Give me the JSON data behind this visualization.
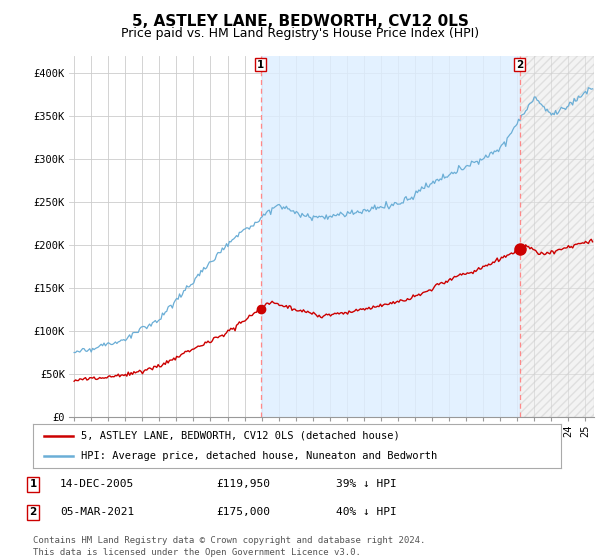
{
  "title": "5, ASTLEY LANE, BEDWORTH, CV12 0LS",
  "subtitle": "Price paid vs. HM Land Registry's House Price Index (HPI)",
  "title_fontsize": 11,
  "subtitle_fontsize": 9,
  "ylim": [
    0,
    420000
  ],
  "yticks": [
    0,
    50000,
    100000,
    150000,
    200000,
    250000,
    300000,
    350000,
    400000
  ],
  "ytick_labels": [
    "£0",
    "£50K",
    "£100K",
    "£150K",
    "£200K",
    "£250K",
    "£300K",
    "£350K",
    "£400K"
  ],
  "background_color": "#ffffff",
  "plot_bg_color": "#ffffff",
  "grid_color": "#cccccc",
  "hpi_color": "#6baed6",
  "price_color": "#cc0000",
  "shade_color": "#ddeeff",
  "marker1_t": 2005.95,
  "marker1_price_val": 119950,
  "marker1_label": "1",
  "marker1_date": "14-DEC-2005",
  "marker1_price": "£119,950",
  "marker1_pct": "39% ↓ HPI",
  "marker2_t": 2021.17,
  "marker2_price_val": 175000,
  "marker2_label": "2",
  "marker2_date": "05-MAR-2021",
  "marker2_price": "£175,000",
  "marker2_pct": "40% ↓ HPI",
  "legend_line1": "5, ASTLEY LANE, BEDWORTH, CV12 0LS (detached house)",
  "legend_line2": "HPI: Average price, detached house, Nuneaton and Bedworth",
  "footer1": "Contains HM Land Registry data © Crown copyright and database right 2024.",
  "footer2": "This data is licensed under the Open Government Licence v3.0.",
  "xlim_left": 1994.7,
  "xlim_right": 2025.5
}
